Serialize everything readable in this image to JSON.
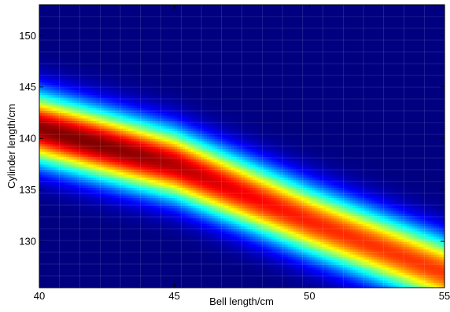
{
  "chart_data": {
    "type": "heatmap",
    "title": "",
    "xlabel": "Bell length/cm",
    "ylabel": "Cylinder length/cm",
    "xlim": [
      40,
      55
    ],
    "ylim": [
      125.5,
      153
    ],
    "xticks": [
      40,
      45,
      50,
      55
    ],
    "yticks": [
      130,
      135,
      140,
      145,
      150
    ],
    "xtick_labels": [
      "40",
      "45",
      "50",
      "55"
    ],
    "ytick_labels": [
      "130",
      "135",
      "140",
      "145",
      "150"
    ],
    "colormap": "jet",
    "grid": "off",
    "band": {
      "ridge_centerline": [
        {
          "x": 40,
          "y": 141.0
        },
        {
          "x": 45,
          "y": 137.5
        },
        {
          "x": 50,
          "y": 132.0
        },
        {
          "x": 55,
          "y": 127.0
        }
      ],
      "ridge_half_width_cm": 4.2,
      "peak_at": {
        "x": 41.5,
        "y": 140.0
      },
      "peak_value": 1.0,
      "edge_value": 0.0
    },
    "colors": {
      "low": "#00008f",
      "mid": "#80ff80",
      "high": "#800000"
    }
  }
}
